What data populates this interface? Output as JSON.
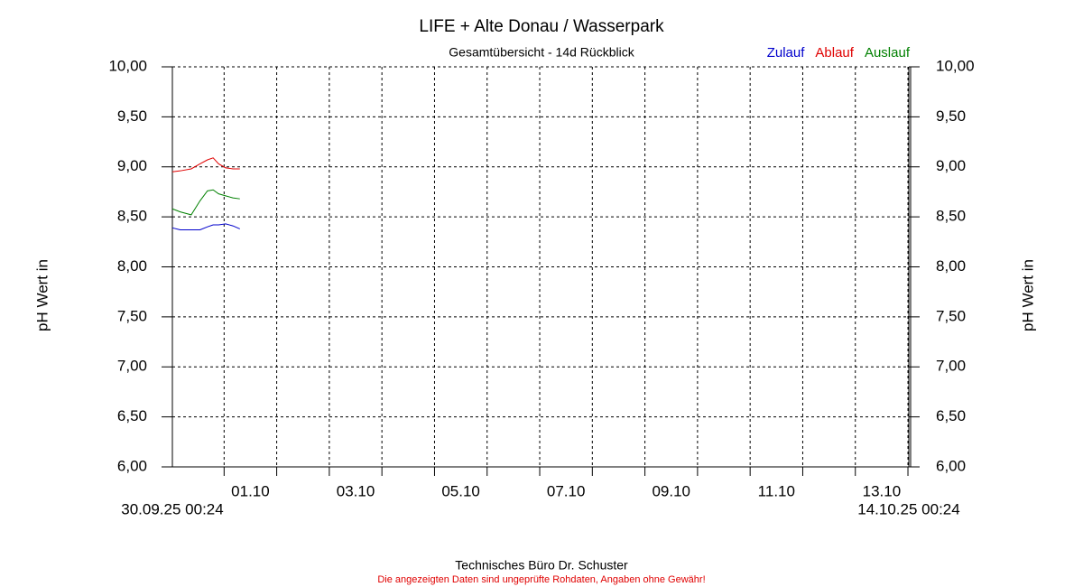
{
  "chart_data": {
    "type": "line",
    "title": "LIFE + Alte Donau / Wasserpark",
    "subtitle": "Gesamtübersicht - 14d Rückblick",
    "y_label": "pH Wert in",
    "footer": "Technisches Büro Dr. Schuster",
    "disclaimer": "Die angezeigten Daten sind ungeprüfte Rohdaten, Angaben ohne Gewähr!",
    "xlim": [
      {
        "value": "2025-09-30T00:24",
        "label": "30.09.25 00:24"
      },
      {
        "value": "2025-10-14T00:24",
        "label": "14.10.25 00:24"
      }
    ],
    "xticks": [
      "2025-10-01T00:00",
      "2025-10-02T00:00",
      "2025-10-03T00:00",
      "2025-10-04T00:00",
      "2025-10-05T00:00",
      "2025-10-06T00:00",
      "2025-10-07T00:00",
      "2025-10-08T00:00",
      "2025-10-09T00:00",
      "2025-10-10T00:00",
      "2025-10-11T00:00",
      "2025-10-12T00:00",
      "2025-10-13T00:00",
      "2025-10-14T00:00"
    ],
    "xtick_labels": [
      {
        "value": "2025-10-01T12:00",
        "label": "01.10"
      },
      {
        "value": "2025-10-03T12:00",
        "label": "03.10"
      },
      {
        "value": "2025-10-05T12:00",
        "label": "05.10"
      },
      {
        "value": "2025-10-07T12:00",
        "label": "07.10"
      },
      {
        "value": "2025-10-09T12:00",
        "label": "09.10"
      },
      {
        "value": "2025-10-11T12:00",
        "label": "11.10"
      },
      {
        "value": "2025-10-13T12:00",
        "label": "13.10"
      }
    ],
    "ylim": [
      6,
      10
    ],
    "yticks": [
      {
        "value": 6,
        "label": "6,00"
      },
      {
        "value": 6.5,
        "label": "6,50"
      },
      {
        "value": 7,
        "label": "7,00"
      },
      {
        "value": 7.5,
        "label": "7,50"
      },
      {
        "value": 8,
        "label": "8,00"
      },
      {
        "value": 8.5,
        "label": "8,50"
      },
      {
        "value": 9,
        "label": "9,00"
      },
      {
        "value": 9.5,
        "label": "9,50"
      },
      {
        "value": 10,
        "label": "10,00"
      }
    ],
    "grid": true,
    "x": [
      "2025-09-30T00:24",
      "2025-09-30T04:00",
      "2025-09-30T09:00",
      "2025-09-30T13:00",
      "2025-09-30T16:24",
      "2025-09-30T19:00",
      "2025-09-30T21:30",
      "2025-10-01T00:42",
      "2025-10-01T04:00",
      "2025-10-01T07:12"
    ],
    "series": [
      {
        "name": "Zulauf",
        "color": "#0000cc",
        "values": [
          8.39,
          8.37,
          8.37,
          8.37,
          8.4,
          8.42,
          8.42,
          8.43,
          8.41,
          8.38
        ]
      },
      {
        "name": "Ablauf",
        "color": "#e00000",
        "values": [
          8.95,
          8.96,
          8.98,
          9.03,
          9.07,
          9.09,
          9.03,
          8.99,
          8.98,
          8.98
        ]
      },
      {
        "name": "Auslauf",
        "color": "#008000",
        "values": [
          8.58,
          8.55,
          8.52,
          8.66,
          8.76,
          8.77,
          8.73,
          8.71,
          8.69,
          8.68
        ]
      }
    ]
  }
}
